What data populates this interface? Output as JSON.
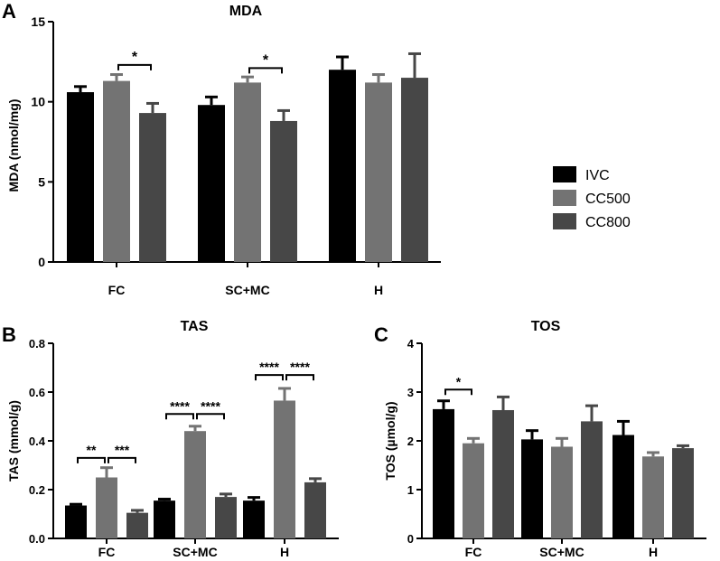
{
  "legend": {
    "entries": [
      {
        "label": "IVC",
        "color": "#000000"
      },
      {
        "label": "CC500",
        "color": "#737373"
      },
      {
        "label": "CC800",
        "color": "#474747"
      }
    ]
  },
  "chart_data": [
    {
      "panel": "A",
      "type": "bar",
      "title": "MDA",
      "ylabel": "MDA (nmol/mg)",
      "xlabel": "",
      "categories": [
        "FC",
        "SC+MC",
        "H"
      ],
      "ylim": [
        0,
        15
      ],
      "yticks": [
        0,
        5,
        10,
        15
      ],
      "ytick_labels": [
        "0",
        "5",
        "10",
        "15"
      ],
      "series": [
        {
          "name": "IVC",
          "values": [
            10.6,
            9.8,
            12.0
          ],
          "errors": [
            0.35,
            0.5,
            0.8
          ]
        },
        {
          "name": "CC500",
          "values": [
            11.3,
            11.2,
            11.2
          ],
          "errors": [
            0.4,
            0.35,
            0.5
          ]
        },
        {
          "name": "CC800",
          "values": [
            9.3,
            8.8,
            11.5
          ],
          "errors": [
            0.6,
            0.65,
            1.5
          ]
        }
      ],
      "annotations": [
        {
          "group": 0,
          "from": 1,
          "to": 2,
          "label": "*",
          "level": 12.3
        },
        {
          "group": 1,
          "from": 1,
          "to": 2,
          "label": "*",
          "level": 12.1
        }
      ]
    },
    {
      "panel": "B",
      "type": "bar",
      "title": "TAS",
      "ylabel": "TAS (mmol/g)",
      "xlabel": "",
      "categories": [
        "FC",
        "SC+MC",
        "H"
      ],
      "ylim": [
        0,
        0.8
      ],
      "yticks": [
        0,
        0.2,
        0.4,
        0.6,
        0.8
      ],
      "ytick_labels": [
        "0.0",
        "0.2",
        "0.4",
        "0.6",
        "0.8"
      ],
      "series": [
        {
          "name": "IVC",
          "values": [
            0.135,
            0.155,
            0.155
          ],
          "errors": [
            0.005,
            0.006,
            0.013
          ]
        },
        {
          "name": "CC500",
          "values": [
            0.25,
            0.44,
            0.565
          ],
          "errors": [
            0.04,
            0.02,
            0.05
          ]
        },
        {
          "name": "CC800",
          "values": [
            0.105,
            0.17,
            0.23
          ],
          "errors": [
            0.01,
            0.012,
            0.015
          ]
        }
      ],
      "annotations": [
        {
          "group": 0,
          "from": 0,
          "to": 1,
          "label": "**",
          "level": 0.33
        },
        {
          "group": 0,
          "from": 1,
          "to": 2,
          "label": "***",
          "level": 0.33
        },
        {
          "group": 1,
          "from": 0,
          "to": 1,
          "label": "****",
          "level": 0.51
        },
        {
          "group": 1,
          "from": 1,
          "to": 2,
          "label": "****",
          "level": 0.51
        },
        {
          "group": 2,
          "from": 0,
          "to": 1,
          "label": "****",
          "level": 0.67
        },
        {
          "group": 2,
          "from": 1,
          "to": 2,
          "label": "****",
          "level": 0.67
        }
      ]
    },
    {
      "panel": "C",
      "type": "bar",
      "title": "TOS",
      "ylabel": "TOS (µmol/g)",
      "xlabel": "",
      "categories": [
        "FC",
        "SC+MC",
        "H"
      ],
      "ylim": [
        0,
        4
      ],
      "yticks": [
        0,
        1,
        2,
        3,
        4
      ],
      "ytick_labels": [
        "0",
        "1",
        "2",
        "3",
        "4"
      ],
      "series": [
        {
          "name": "IVC",
          "values": [
            2.65,
            2.03,
            2.12
          ],
          "errors": [
            0.17,
            0.18,
            0.28
          ]
        },
        {
          "name": "CC500",
          "values": [
            1.95,
            1.88,
            1.68
          ],
          "errors": [
            0.1,
            0.17,
            0.08
          ]
        },
        {
          "name": "CC800",
          "values": [
            2.63,
            2.4,
            1.85
          ],
          "errors": [
            0.27,
            0.32,
            0.05
          ]
        }
      ],
      "annotations": [
        {
          "group": 0,
          "from": 0,
          "to": 1,
          "label": "*",
          "level": 3.05
        }
      ]
    }
  ]
}
